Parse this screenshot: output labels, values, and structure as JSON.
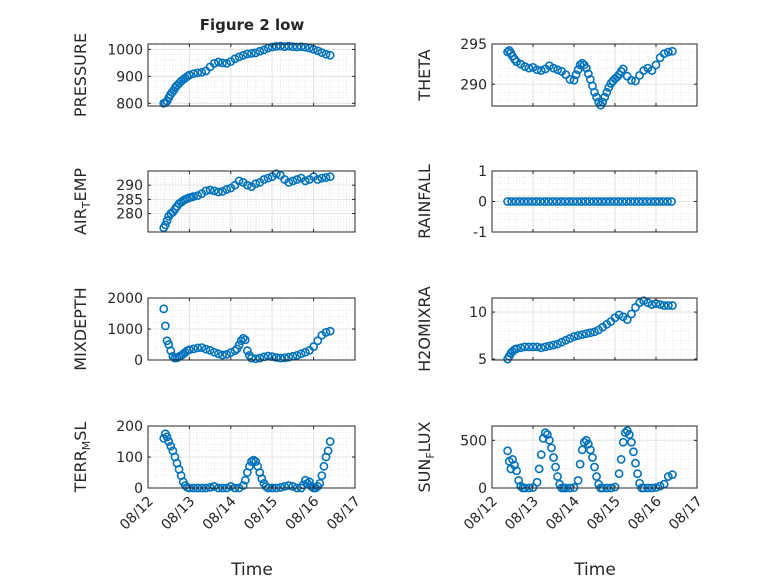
{
  "figure": {
    "title": "Figure 2 low",
    "xlabel": "Time"
  },
  "style": {
    "marker_color": "#0072BD",
    "axis_color": "#262626",
    "grid_color": "#d9d9d9"
  },
  "x_ticks": [
    "08/12",
    "08/13",
    "08/14",
    "08/15",
    "08/16",
    "08/17"
  ],
  "chart_data": [
    {
      "type": "scatter",
      "ylabel": "PRESSURE",
      "ylim": [
        790,
        1020
      ],
      "yticks": [
        800,
        900,
        1000
      ],
      "grid": true,
      "x": [
        0.38,
        0.42,
        0.46,
        0.5,
        0.54,
        0.58,
        0.62,
        0.66,
        0.7,
        0.75,
        0.8,
        0.85,
        0.9,
        0.95,
        1.0,
        1.1,
        1.2,
        1.3,
        1.4,
        1.5,
        1.6,
        1.7,
        1.8,
        1.9,
        2.0,
        2.1,
        2.2,
        2.3,
        2.4,
        2.5,
        2.6,
        2.7,
        2.8,
        2.9,
        3.0,
        3.1,
        3.2,
        3.3,
        3.4,
        3.5,
        3.6,
        3.7,
        3.8,
        3.9,
        4.0,
        4.1,
        4.2,
        4.3,
        4.4
      ],
      "y": [
        800,
        802,
        808,
        820,
        832,
        840,
        848,
        858,
        866,
        874,
        882,
        888,
        894,
        900,
        905,
        910,
        913,
        915,
        920,
        935,
        948,
        953,
        950,
        948,
        955,
        965,
        972,
        978,
        983,
        985,
        987,
        993,
        998,
        1005,
        1009,
        1011,
        1012,
        1010,
        1012,
        1010,
        1009,
        1010,
        1008,
        1005,
        1000,
        995,
        988,
        982,
        978
      ]
    },
    {
      "type": "scatter",
      "ylabel": "THETA",
      "ylim": [
        287.3,
        295
      ],
      "yticks": [
        290,
        295
      ],
      "grid": true,
      "x": [
        0.38,
        0.42,
        0.46,
        0.5,
        0.55,
        0.6,
        0.7,
        0.8,
        0.9,
        1.0,
        1.1,
        1.2,
        1.3,
        1.4,
        1.5,
        1.6,
        1.7,
        1.8,
        1.9,
        2.0,
        2.05,
        2.1,
        2.15,
        2.2,
        2.25,
        2.3,
        2.35,
        2.4,
        2.45,
        2.5,
        2.55,
        2.6,
        2.65,
        2.7,
        2.75,
        2.8,
        2.85,
        2.9,
        2.95,
        3.0,
        3.05,
        3.1,
        3.15,
        3.2,
        3.3,
        3.4,
        3.5,
        3.6,
        3.7,
        3.8,
        3.9,
        4.0,
        4.1,
        4.2,
        4.3,
        4.4
      ],
      "y": [
        294,
        294.2,
        293.9,
        293.5,
        293.1,
        292.8,
        292.5,
        292.2,
        292,
        292.1,
        291.8,
        291.7,
        291.9,
        292.3,
        292,
        291.8,
        291.6,
        291.2,
        290.6,
        290.5,
        291.2,
        291.8,
        292.4,
        292.6,
        292.4,
        292,
        291.3,
        290.6,
        289.8,
        289,
        288.4,
        287.8,
        287.4,
        287.8,
        288.4,
        289,
        289.6,
        290.1,
        290.4,
        290.7,
        290.9,
        291.2,
        291.6,
        291.9,
        291,
        290.5,
        290.4,
        291.1,
        291.7,
        292,
        291.7,
        292.4,
        293.3,
        293.8,
        294,
        294.1
      ]
    },
    {
      "type": "scatter",
      "ylabel": "AIR_TEMP",
      "ylim": [
        273.5,
        295
      ],
      "yticks": [
        280,
        285,
        290
      ],
      "grid": true,
      "x": [
        0.38,
        0.42,
        0.46,
        0.5,
        0.55,
        0.6,
        0.65,
        0.7,
        0.75,
        0.8,
        0.85,
        0.9,
        0.95,
        1.0,
        1.05,
        1.1,
        1.2,
        1.3,
        1.4,
        1.5,
        1.6,
        1.7,
        1.8,
        1.9,
        2.0,
        2.1,
        2.2,
        2.3,
        2.4,
        2.5,
        2.6,
        2.7,
        2.8,
        2.9,
        3.0,
        3.1,
        3.2,
        3.3,
        3.4,
        3.5,
        3.6,
        3.7,
        3.8,
        3.9,
        4.0,
        4.1,
        4.2,
        4.3,
        4.4
      ],
      "y": [
        275,
        276,
        277.5,
        279,
        280,
        280.5,
        281.5,
        282.5,
        283.5,
        284,
        284.5,
        285,
        285.3,
        285.6,
        285.8,
        286,
        286.3,
        287,
        288,
        288.3,
        288,
        287.6,
        287.8,
        288.5,
        289,
        290,
        291.5,
        291,
        290,
        289.5,
        290.5,
        291,
        292,
        292.5,
        293,
        294,
        293.5,
        292,
        291,
        291.5,
        292,
        292.5,
        291.5,
        292,
        293,
        292,
        292.5,
        292.7,
        293
      ]
    },
    {
      "type": "scatter",
      "ylabel": "RAINFALL",
      "ylim": [
        -1,
        1
      ],
      "yticks": [
        -1,
        0,
        1
      ],
      "grid": true,
      "x": [
        0.38,
        0.48,
        0.58,
        0.68,
        0.78,
        0.88,
        0.98,
        1.08,
        1.18,
        1.28,
        1.38,
        1.48,
        1.58,
        1.68,
        1.78,
        1.88,
        1.98,
        2.08,
        2.18,
        2.28,
        2.38,
        2.48,
        2.58,
        2.68,
        2.78,
        2.88,
        2.98,
        3.08,
        3.18,
        3.28,
        3.38,
        3.48,
        3.58,
        3.68,
        3.78,
        3.88,
        3.98,
        4.08,
        4.18,
        4.28,
        4.38
      ],
      "y": [
        0,
        0,
        0,
        0,
        0,
        0,
        0,
        0,
        0,
        0,
        0,
        0,
        0,
        0,
        0,
        0,
        0,
        0,
        0,
        0,
        0,
        0,
        0,
        0,
        0,
        0,
        0,
        0,
        0,
        0,
        0,
        0,
        0,
        0,
        0,
        0,
        0,
        0,
        0,
        0,
        0
      ]
    },
    {
      "type": "scatter",
      "ylabel": "MIXDEPTH",
      "ylim": [
        0,
        2000
      ],
      "yticks": [
        0,
        1000,
        2000
      ],
      "grid": true,
      "x": [
        0.38,
        0.42,
        0.46,
        0.5,
        0.55,
        0.6,
        0.65,
        0.7,
        0.75,
        0.8,
        0.85,
        0.9,
        0.95,
        1.0,
        1.1,
        1.2,
        1.3,
        1.4,
        1.5,
        1.6,
        1.7,
        1.8,
        1.9,
        2.0,
        2.1,
        2.15,
        2.2,
        2.25,
        2.3,
        2.35,
        2.4,
        2.45,
        2.5,
        2.6,
        2.7,
        2.8,
        2.9,
        3.0,
        3.1,
        3.2,
        3.3,
        3.4,
        3.5,
        3.6,
        3.7,
        3.8,
        3.9,
        4.0,
        4.1,
        4.2,
        4.3,
        4.4
      ],
      "y": [
        1650,
        1100,
        620,
        500,
        300,
        120,
        60,
        70,
        110,
        150,
        190,
        250,
        300,
        330,
        360,
        390,
        400,
        350,
        310,
        250,
        200,
        160,
        180,
        240,
        300,
        360,
        480,
        620,
        700,
        650,
        300,
        150,
        60,
        40,
        60,
        100,
        130,
        110,
        80,
        60,
        70,
        90,
        120,
        150,
        200,
        250,
        310,
        430,
        620,
        800,
        890,
        930
      ]
    },
    {
      "type": "scatter",
      "ylabel": "H2OMIXRA",
      "ylim": [
        4.9,
        11.5
      ],
      "yticks": [
        5,
        10
      ],
      "grid": true,
      "x": [
        0.38,
        0.42,
        0.46,
        0.5,
        0.55,
        0.6,
        0.7,
        0.8,
        0.9,
        1.0,
        1.1,
        1.2,
        1.3,
        1.4,
        1.5,
        1.6,
        1.7,
        1.8,
        1.9,
        2.0,
        2.1,
        2.2,
        2.3,
        2.4,
        2.5,
        2.6,
        2.7,
        2.8,
        2.9,
        3.0,
        3.1,
        3.2,
        3.3,
        3.4,
        3.5,
        3.6,
        3.7,
        3.8,
        3.9,
        4.0,
        4.1,
        4.2,
        4.3,
        4.4
      ],
      "y": [
        5,
        5.3,
        5.6,
        5.8,
        6,
        6.1,
        6.2,
        6.3,
        6.3,
        6.3,
        6.3,
        6.2,
        6.3,
        6.4,
        6.5,
        6.6,
        6.8,
        7,
        7.2,
        7.4,
        7.5,
        7.6,
        7.7,
        7.8,
        7.9,
        8.1,
        8.4,
        8.7,
        9.0,
        9.4,
        9.7,
        9.5,
        9.2,
        9.8,
        10.5,
        11.0,
        11.2,
        11.0,
        10.8,
        10.9,
        10.8,
        10.7,
        10.7,
        10.7
      ]
    },
    {
      "type": "scatter",
      "ylabel": "TERR_MSL",
      "ylim": [
        0,
        200
      ],
      "yticks": [
        0,
        100,
        200
      ],
      "grid": true,
      "x": [
        0.38,
        0.42,
        0.46,
        0.5,
        0.55,
        0.6,
        0.65,
        0.7,
        0.75,
        0.8,
        0.85,
        0.9,
        0.95,
        1.0,
        1.1,
        1.2,
        1.3,
        1.4,
        1.5,
        1.6,
        1.7,
        1.8,
        1.9,
        2.0,
        2.1,
        2.2,
        2.3,
        2.35,
        2.4,
        2.45,
        2.5,
        2.55,
        2.6,
        2.65,
        2.7,
        2.75,
        2.8,
        2.85,
        2.9,
        3.0,
        3.1,
        3.2,
        3.3,
        3.4,
        3.5,
        3.6,
        3.7,
        3.75,
        3.8,
        3.85,
        3.9,
        3.95,
        4.0,
        4.05,
        4.1,
        4.15,
        4.2,
        4.25,
        4.3,
        4.35,
        4.4
      ],
      "y": [
        160,
        175,
        165,
        150,
        135,
        120,
        100,
        80,
        60,
        40,
        20,
        8,
        2,
        0,
        0,
        0,
        0,
        0,
        2,
        5,
        0,
        0,
        0,
        5,
        0,
        0,
        8,
        25,
        50,
        70,
        85,
        90,
        85,
        70,
        50,
        30,
        15,
        5,
        0,
        0,
        0,
        2,
        5,
        8,
        5,
        0,
        0,
        10,
        25,
        15,
        20,
        5,
        0,
        0,
        5,
        15,
        40,
        70,
        100,
        120,
        150
      ]
    },
    {
      "type": "scatter",
      "ylabel": "SUN_FLUX",
      "ylim": [
        0,
        650
      ],
      "yticks": [
        0,
        500
      ],
      "grid": true,
      "x": [
        0.38,
        0.42,
        0.46,
        0.5,
        0.55,
        0.6,
        0.65,
        0.7,
        0.75,
        0.8,
        0.9,
        1.0,
        1.1,
        1.15,
        1.2,
        1.25,
        1.3,
        1.35,
        1.4,
        1.45,
        1.5,
        1.55,
        1.6,
        1.65,
        1.7,
        1.75,
        1.8,
        1.9,
        2.0,
        2.1,
        2.15,
        2.2,
        2.25,
        2.3,
        2.35,
        2.4,
        2.45,
        2.5,
        2.55,
        2.6,
        2.65,
        2.7,
        2.8,
        2.9,
        3.0,
        3.1,
        3.15,
        3.2,
        3.25,
        3.3,
        3.35,
        3.4,
        3.45,
        3.5,
        3.55,
        3.6,
        3.65,
        3.7,
        3.8,
        3.9,
        4.0,
        4.1,
        4.2,
        4.3,
        4.4
      ],
      "y": [
        390,
        280,
        200,
        300,
        240,
        180,
        80,
        20,
        0,
        0,
        0,
        5,
        60,
        200,
        350,
        520,
        580,
        560,
        500,
        420,
        320,
        220,
        120,
        40,
        0,
        0,
        0,
        0,
        5,
        80,
        250,
        400,
        480,
        500,
        460,
        400,
        320,
        220,
        120,
        40,
        0,
        0,
        0,
        0,
        10,
        150,
        300,
        480,
        580,
        600,
        560,
        480,
        380,
        260,
        150,
        50,
        0,
        0,
        0,
        0,
        5,
        20,
        40,
        120,
        140
      ]
    }
  ]
}
